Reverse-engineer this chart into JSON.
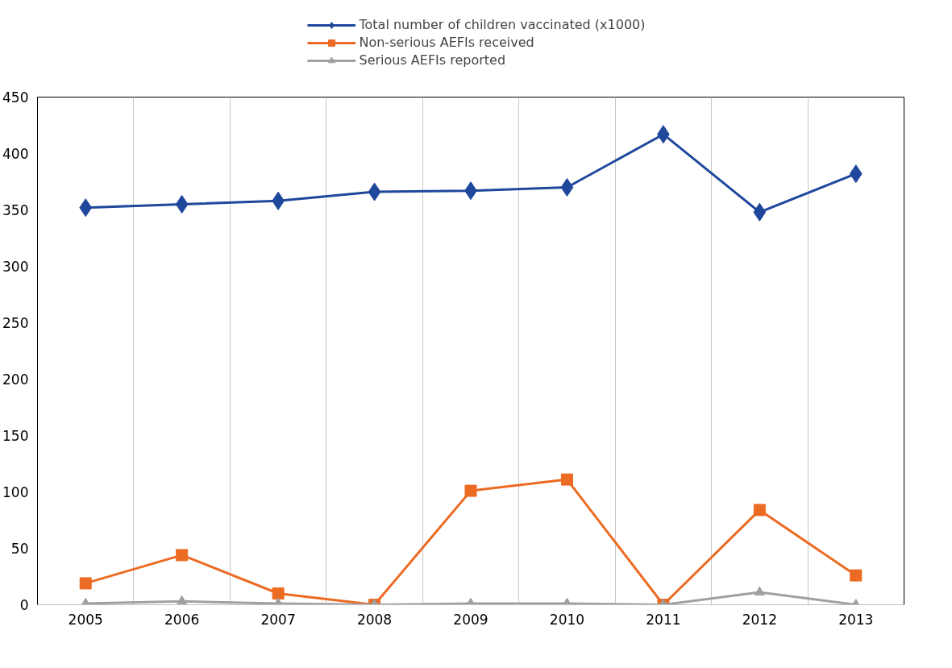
{
  "chart_data": {
    "type": "line",
    "categories": [
      "2005",
      "2006",
      "2007",
      "2008",
      "2009",
      "2010",
      "2011",
      "2012",
      "2013"
    ],
    "series": [
      {
        "name": "Total number of children vaccinated (x1000)",
        "color": "#1f479c",
        "marker": "diamond",
        "values": [
          352,
          355,
          358,
          366,
          367,
          370,
          417,
          348,
          382
        ]
      },
      {
        "name": "Non-serious AEFIs received",
        "color": "#ec6b23",
        "marker": "square",
        "values": [
          19,
          44,
          10,
          0,
          101,
          111,
          0,
          84,
          26
        ]
      },
      {
        "name": "Serious AEFIs reported",
        "color": "#a0a0a0",
        "marker": "triangle",
        "values": [
          1,
          3,
          1,
          0,
          1,
          1,
          0,
          11,
          0
        ]
      }
    ],
    "ylim": [
      0,
      450
    ],
    "yticks": [
      0,
      50,
      100,
      150,
      200,
      250,
      300,
      350,
      400,
      450
    ],
    "grid": "x",
    "legend": "top",
    "line_style": "solid"
  }
}
